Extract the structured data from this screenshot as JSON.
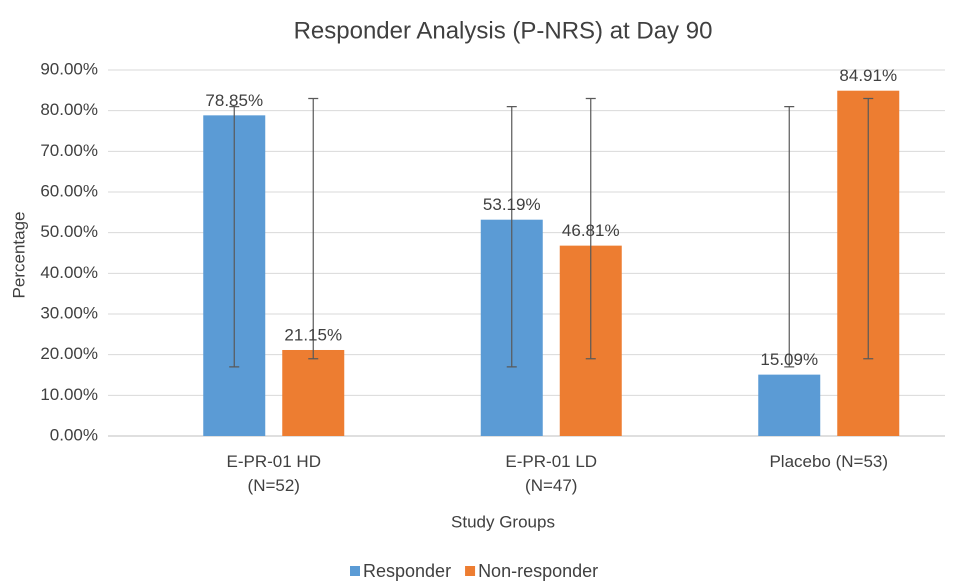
{
  "chart_data": {
    "type": "bar",
    "title": "Responder Analysis (P-NRS) at Day 90",
    "x_label": "Study Groups",
    "y_label": "Percentage",
    "categories": [
      "E-PR-01 HD\n(N=52)",
      "E-PR-01 LD\n(N=47)",
      "Placebo (N=53)"
    ],
    "series": [
      {
        "name": "Responder",
        "color": "#5b9bd5",
        "values": [
          78.85,
          53.19,
          15.09
        ],
        "value_labels": [
          "78.85%",
          "53.19%",
          "15.09%"
        ],
        "error_low": [
          17,
          17,
          17
        ],
        "error_high": [
          81,
          81,
          81
        ]
      },
      {
        "name": "Non-responder",
        "color": "#ed7d31",
        "values": [
          21.15,
          46.81,
          84.91
        ],
        "value_labels": [
          "21.15%",
          "46.81%",
          "84.91%"
        ],
        "error_low": [
          19,
          19,
          19
        ],
        "error_high": [
          83,
          83,
          83
        ]
      }
    ],
    "ylim": [
      0,
      90
    ],
    "yticks": [
      {
        "value": 0,
        "label": "0.00%"
      },
      {
        "value": 10,
        "label": "10.00%"
      },
      {
        "value": 20,
        "label": "20.00%"
      },
      {
        "value": 30,
        "label": "30.00%"
      },
      {
        "value": 40,
        "label": "40.00%"
      },
      {
        "value": 50,
        "label": "50.00%"
      },
      {
        "value": 60,
        "label": "60.00%"
      },
      {
        "value": 70,
        "label": "70.00%"
      },
      {
        "value": 80,
        "label": "80.00%"
      },
      {
        "value": 90,
        "label": "90.00%"
      }
    ],
    "grid": true,
    "legend": "bottom"
  }
}
